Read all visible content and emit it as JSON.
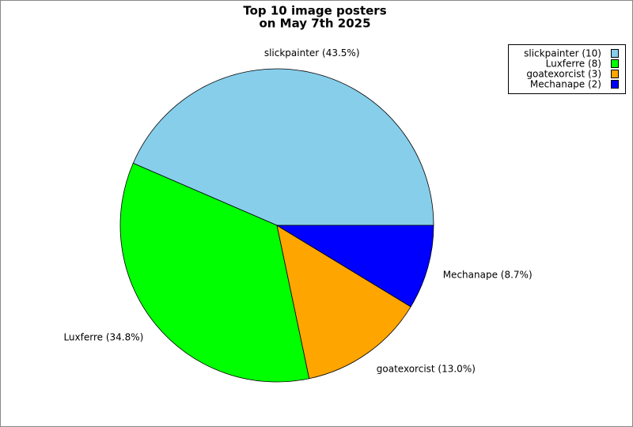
{
  "chart_data": {
    "type": "pie",
    "title": [
      "Top 10 image posters",
      "on May 7th 2025"
    ],
    "categories": [
      "slickpainter (10)",
      "Luxferre (8)",
      "goatexorcist (3)",
      "Mechanape (2)"
    ],
    "values": [
      43.5,
      34.8,
      13.0,
      8.7
    ],
    "value_labels": [
      "slickpainter (43.5%)",
      "Luxferre (34.8%)",
      "goatexorcist (13.0%)",
      "Mechanape (8.7%)"
    ],
    "colors": [
      "#87ceeb",
      "#00ff00",
      "#ffa500",
      "#0000ff"
    ],
    "legend": "top-right"
  }
}
